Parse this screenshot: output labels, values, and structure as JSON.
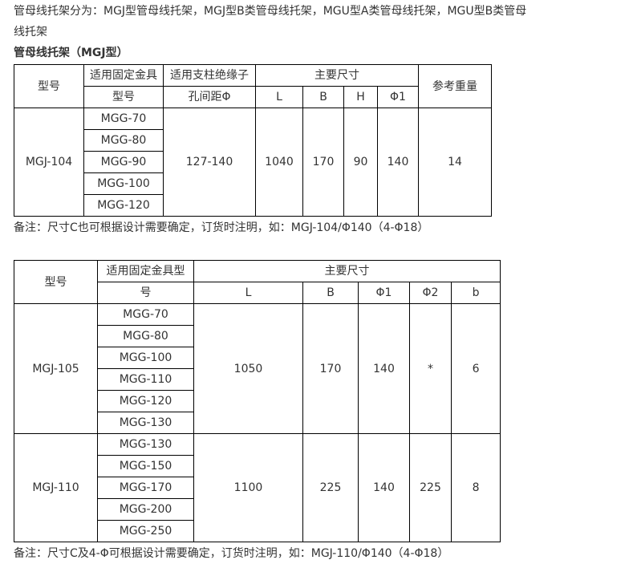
{
  "intro": {
    "line1": "管母线托架分为：MGJ型管母线托架，MGJ型B类管母线托架，MGU型A类管母线托架，MGU型B类管母",
    "line2": "线托架"
  },
  "heading": "管母线托架（MGJ型）",
  "table1": {
    "headers": {
      "model": "型号",
      "fitting": "适用固定金具型号",
      "fitting_l1": "适用固定金具",
      "fitting_l2": "型号",
      "spacing_l1": "适用支柱绝缘子",
      "spacing_l2": "孔间距Φ",
      "dims": "主要尺寸",
      "L": "L",
      "B": "B",
      "H": "H",
      "phi1": "Φ1",
      "weight": "参考重量"
    },
    "row": {
      "model": "MGJ-104",
      "fittings": [
        "MGG-70",
        "MGG-80",
        "MGG-90",
        "MGG-100",
        "MGG-120"
      ],
      "spacing": "127-140",
      "L": "1040",
      "B": "170",
      "H": "90",
      "phi1": "140",
      "weight": "14"
    },
    "note": "备注：尺寸C也可根据设计需要确定，订货时注明，如：MGJ-104/Φ140（4-Φ18）"
  },
  "table2": {
    "headers": {
      "model": "型号",
      "fitting_l1": "适用固定金具型",
      "fitting_l2": "号",
      "dims": "主要尺寸",
      "L": "L",
      "B": "B",
      "phi1": "Φ1",
      "phi2": "Φ2",
      "b": "b"
    },
    "rows": [
      {
        "model": "MGJ-105",
        "fittings": [
          "MGG-70",
          "MGG-80",
          "MGG-100",
          "MGG-110",
          "MGG-120",
          "MGG-130"
        ],
        "L": "1050",
        "B": "170",
        "phi1": "140",
        "phi2": "*",
        "b": "6"
      },
      {
        "model": "MGJ-110",
        "fittings": [
          "MGG-130",
          "MGG-150",
          "MGG-170",
          "MGG-200",
          "MGG-250"
        ],
        "L": "1100",
        "B": "225",
        "phi1": "140",
        "phi2": "225",
        "b": "8"
      }
    ],
    "note": "备注：尺寸C及4-Φ可根据设计需要确定，订货时注明，如：MGJ-110/Φ140（4-Φ18）"
  }
}
